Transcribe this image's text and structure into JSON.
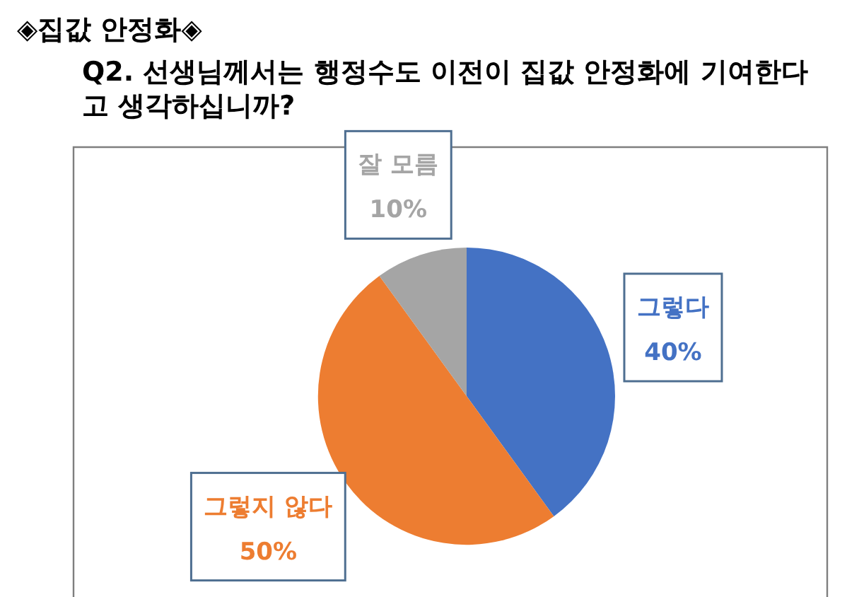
{
  "chart_data": {
    "type": "pie",
    "title": "◈집값 안정화◈",
    "subtitle": "Q2. 선생님께서는 행정수도 이전이 집값 안정화에 기여한다고 생각하십니까?",
    "categories": [
      "그렇다",
      "그렇지 않다",
      "잘 모름"
    ],
    "values": [
      40,
      50,
      10
    ],
    "colors": [
      "#4472c4",
      "#ed7d31",
      "#a5a5a5"
    ],
    "value_labels": [
      "40%",
      "50%",
      "10%"
    ]
  }
}
